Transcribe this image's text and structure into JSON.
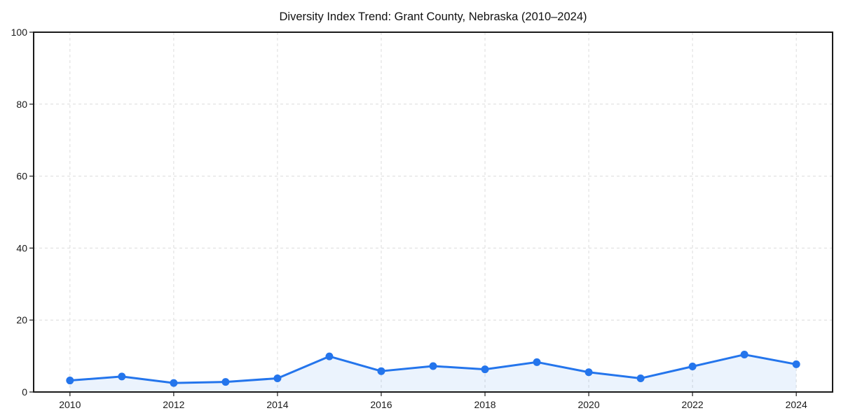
{
  "chart_data": {
    "type": "line",
    "title": "Diversity Index Trend: Grant County, Nebraska (2010–2024)",
    "xlabel": "",
    "ylabel": "",
    "series": [
      {
        "name": "Diversity Index",
        "x": [
          2010,
          2011,
          2012,
          2013,
          2014,
          2015,
          2016,
          2017,
          2018,
          2019,
          2020,
          2021,
          2022,
          2023,
          2024
        ],
        "values": [
          3.2,
          4.3,
          2.5,
          2.8,
          3.8,
          9.9,
          5.8,
          7.2,
          6.3,
          8.3,
          5.5,
          3.8,
          7.1,
          10.4,
          7.7
        ]
      }
    ],
    "xlim": [
      2009.3,
      2024.7
    ],
    "ylim": [
      0,
      100
    ],
    "xticks": [
      2010,
      2012,
      2014,
      2016,
      2018,
      2020,
      2022,
      2024
    ],
    "yticks": [
      0,
      20,
      40,
      60,
      80,
      100
    ],
    "grid": true,
    "grid_style": "dashed",
    "legend_position": "none",
    "area_fill": true,
    "marker": "circle",
    "colors": {
      "line": "#2475ec",
      "marker": "#2475ec",
      "fill": "#2475ec",
      "fill_opacity": 0.09,
      "grid": "#dcdcdc",
      "axis": "#1a1a1a",
      "text": "#1a1a1a",
      "background": "#ffffff"
    }
  }
}
